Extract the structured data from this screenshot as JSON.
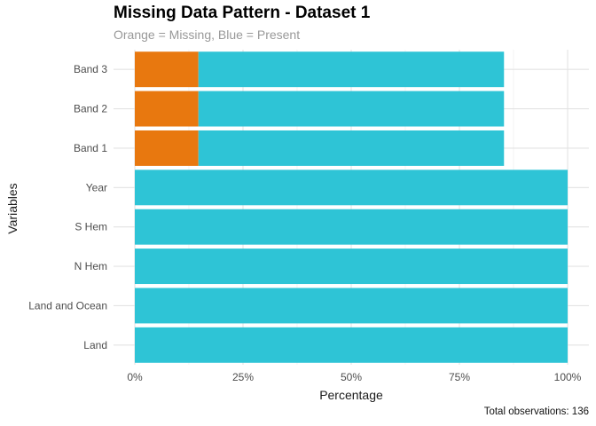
{
  "chart_data": {
    "type": "bar",
    "orientation": "horizontal",
    "stacked": true,
    "title": "Missing Data Pattern - Dataset 1",
    "subtitle": "Orange = Missing, Blue = Present",
    "xlabel": "Percentage",
    "ylabel": "Variables",
    "caption": "Total observations: 136",
    "categories": [
      "Land",
      "Land and Ocean",
      "N Hem",
      "S Hem",
      "Year",
      "Band 1",
      "Band 2",
      "Band 3"
    ],
    "series": [
      {
        "color": "#E8780F",
        "values": [
          0,
          0,
          0,
          0,
          0,
          14.7,
          14.7,
          14.7
        ]
      },
      {
        "color": "#2EC4D6",
        "values": [
          100,
          100,
          100,
          100,
          100,
          70.6,
          70.6,
          70.6
        ]
      }
    ],
    "xlim": [
      0,
      100
    ],
    "xticks": [
      0,
      25,
      50,
      75,
      100
    ],
    "xtick_labels": [
      "0%",
      "25%",
      "50%",
      "75%",
      "100%"
    ],
    "grid": true
  }
}
